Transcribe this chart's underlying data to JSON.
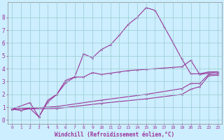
{
  "title": "",
  "xlabel": "Windchill (Refroidissement éolien,°C)",
  "ylabel": "",
  "background_color": "#cceeff",
  "line_color": "#993399",
  "grid_color": "#99cccc",
  "xlim": [
    -0.5,
    23.5
  ],
  "ylim": [
    -0.3,
    9.2
  ],
  "xticks": [
    0,
    1,
    2,
    3,
    4,
    5,
    6,
    7,
    8,
    9,
    10,
    11,
    12,
    13,
    14,
    15,
    16,
    17,
    18,
    19,
    20,
    21,
    22,
    23
  ],
  "yticks": [
    0,
    1,
    2,
    3,
    4,
    5,
    6,
    7,
    8
  ],
  "line1_x": [
    0,
    1,
    2,
    3,
    4,
    5,
    6,
    7,
    8,
    9,
    10,
    11,
    12,
    13,
    14,
    15,
    16,
    17,
    18,
    19,
    20,
    21,
    22,
    23
  ],
  "line1_y": [
    0.85,
    0.75,
    0.9,
    0.25,
    1.4,
    2.0,
    3.1,
    3.35,
    5.15,
    4.85,
    5.5,
    5.85,
    6.6,
    7.45,
    8.0,
    8.75,
    8.55,
    7.3,
    6.05,
    4.75,
    3.6,
    3.6,
    3.75,
    3.75
  ],
  "line2_x": [
    0,
    2,
    3,
    4,
    5,
    6,
    7,
    8,
    9,
    10,
    11,
    12,
    13,
    14,
    15,
    16,
    17,
    18,
    19,
    20,
    21,
    22,
    23
  ],
  "line2_y": [
    0.85,
    1.35,
    0.25,
    1.55,
    2.0,
    2.9,
    3.35,
    3.35,
    3.7,
    3.55,
    3.65,
    3.75,
    3.85,
    3.9,
    3.95,
    4.0,
    4.05,
    4.1,
    4.15,
    4.65,
    3.55,
    3.65,
    3.75
  ],
  "line3_x": [
    0,
    5,
    10,
    15,
    19,
    20,
    21,
    22,
    23
  ],
  "line3_y": [
    0.85,
    1.05,
    1.55,
    2.0,
    2.45,
    2.85,
    2.85,
    3.55,
    3.6
  ],
  "line4_x": [
    0,
    5,
    10,
    15,
    19,
    20,
    21,
    22,
    23
  ],
  "line4_y": [
    0.85,
    0.9,
    1.3,
    1.65,
    2.0,
    2.4,
    2.6,
    3.45,
    3.5
  ]
}
